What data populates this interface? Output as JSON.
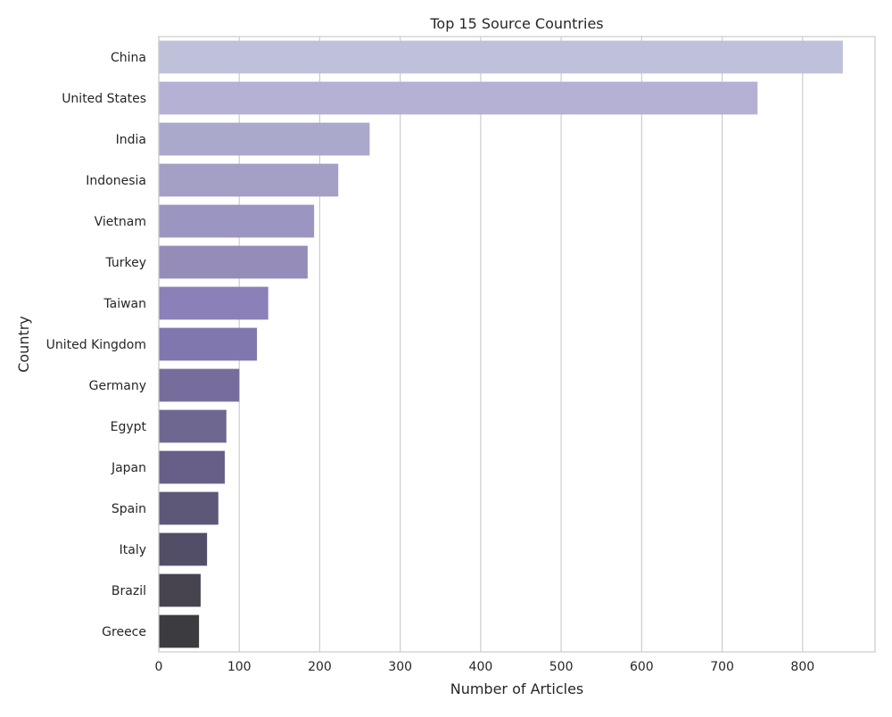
{
  "chart_data": {
    "type": "bar",
    "orientation": "horizontal",
    "title": "Top 15 Source Countries",
    "xlabel": "Number of Articles",
    "ylabel": "Country",
    "xlim": [
      0,
      890
    ],
    "x_ticks": [
      0,
      100,
      200,
      300,
      400,
      500,
      600,
      700,
      800
    ],
    "grid": "vertical",
    "categories": [
      "China",
      "United States",
      "India",
      "Indonesia",
      "Vietnam",
      "Turkey",
      "Taiwan",
      "United Kingdom",
      "Germany",
      "Egypt",
      "Japan",
      "Spain",
      "Italy",
      "Brazil",
      "Greece"
    ],
    "values": [
      850,
      744,
      262,
      223,
      193,
      185,
      136,
      122,
      100,
      84,
      82,
      74,
      60,
      52,
      50
    ],
    "colors": [
      "#bfc0d9",
      "#b5b1d4",
      "#aaa8cb",
      "#a49fc5",
      "#9b95c1",
      "#958cba",
      "#8b80b7",
      "#8077af",
      "#776d9d",
      "#6e6890",
      "#675f87",
      "#5d5878",
      "#534e67",
      "#47444f",
      "#3c3b40"
    ]
  }
}
